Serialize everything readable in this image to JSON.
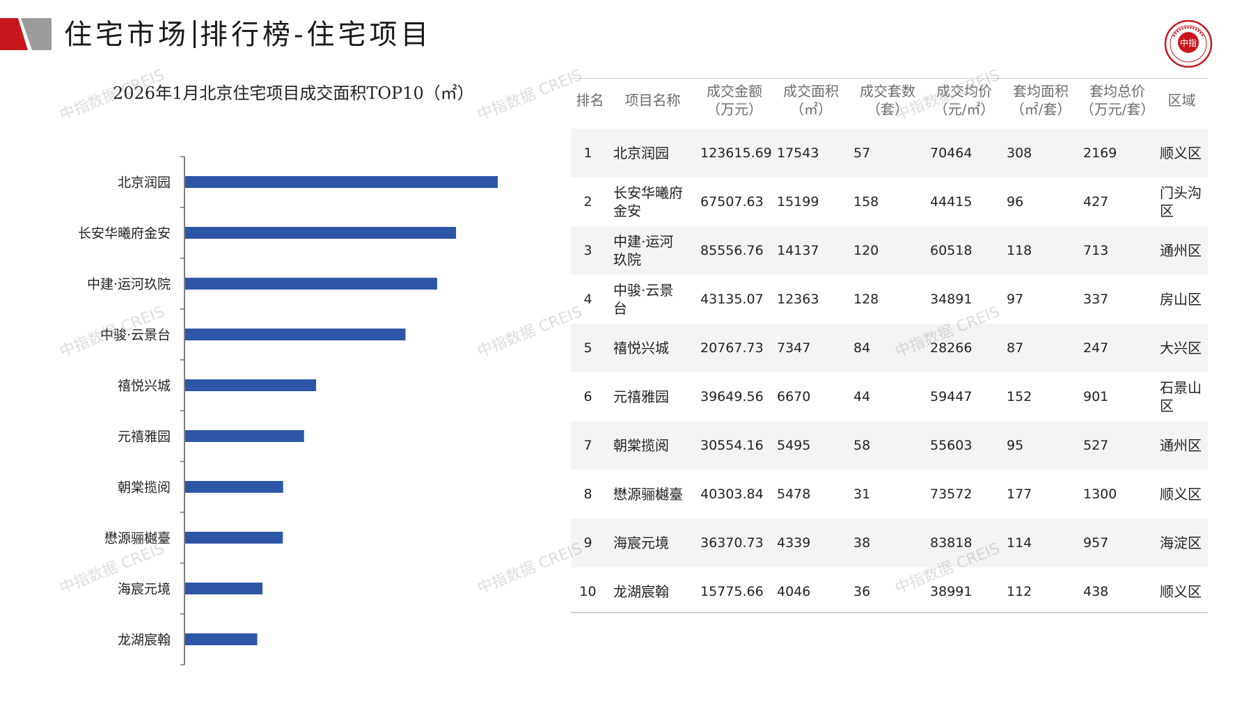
{
  "header": {
    "title_left": "住宅市场",
    "title_right": "排行榜-住宅项目",
    "seal_text": "中指"
  },
  "watermark": "中指数据 CREIS",
  "chart_data": {
    "type": "bar",
    "orientation": "horizontal",
    "title": "2026年1月北京住宅项目成交面积TOP10（㎡）",
    "categories": [
      "北京润园",
      "长安华曦府金安",
      "中建·运河玖院",
      "中骏·云景台",
      "禧悦兴城",
      "元禧雅园",
      "朝棠揽阅",
      "懋源骊樾臺",
      "海宸元境",
      "龙湖宸翰"
    ],
    "values": [
      17543,
      15199,
      14137,
      12363,
      7347,
      6670,
      5495,
      5478,
      4339,
      4046
    ],
    "xlim": [
      0,
      20000
    ],
    "bar_color": "#2e56a6",
    "grid": false
  },
  "table": {
    "headers": [
      [
        "排名"
      ],
      [
        "项目名称"
      ],
      [
        "成交金额",
        "（万元）"
      ],
      [
        "成交面积",
        "（㎡）"
      ],
      [
        "成交套数",
        "（套）"
      ],
      [
        "成交均价",
        "（元/㎡）"
      ],
      [
        "套均面积",
        "（㎡/套）"
      ],
      [
        "套均总价",
        "（万元/套）"
      ],
      [
        "区域"
      ]
    ],
    "rows": [
      {
        "rank": "1",
        "name": [
          "北京润园"
        ],
        "amount": "123615.69",
        "area": "17543",
        "units": "57",
        "price": "70464",
        "avg_area": "308",
        "avg_total": "2169",
        "district": [
          "顺义区"
        ]
      },
      {
        "rank": "2",
        "name": [
          "长安华曦府",
          "金安"
        ],
        "amount": "67507.63",
        "area": "15199",
        "units": "158",
        "price": "44415",
        "avg_area": "96",
        "avg_total": "427",
        "district": [
          "门头沟",
          "区"
        ]
      },
      {
        "rank": "3",
        "name": [
          "中建·运河",
          "玖院"
        ],
        "amount": "85556.76",
        "area": "14137",
        "units": "120",
        "price": "60518",
        "avg_area": "118",
        "avg_total": "713",
        "district": [
          "通州区"
        ]
      },
      {
        "rank": "4",
        "name": [
          "中骏·云景",
          "台"
        ],
        "amount": "43135.07",
        "area": "12363",
        "units": "128",
        "price": "34891",
        "avg_area": "97",
        "avg_total": "337",
        "district": [
          "房山区"
        ]
      },
      {
        "rank": "5",
        "name": [
          "禧悦兴城"
        ],
        "amount": "20767.73",
        "area": "7347",
        "units": "84",
        "price": "28266",
        "avg_area": "87",
        "avg_total": "247",
        "district": [
          "大兴区"
        ]
      },
      {
        "rank": "6",
        "name": [
          "元禧雅园"
        ],
        "amount": "39649.56",
        "area": "6670",
        "units": "44",
        "price": "59447",
        "avg_area": "152",
        "avg_total": "901",
        "district": [
          "石景山",
          "区"
        ]
      },
      {
        "rank": "7",
        "name": [
          "朝棠揽阅"
        ],
        "amount": "30554.16",
        "area": "5495",
        "units": "58",
        "price": "55603",
        "avg_area": "95",
        "avg_total": "527",
        "district": [
          "通州区"
        ]
      },
      {
        "rank": "8",
        "name": [
          "懋源骊樾臺"
        ],
        "amount": "40303.84",
        "area": "5478",
        "units": "31",
        "price": "73572",
        "avg_area": "177",
        "avg_total": "1300",
        "district": [
          "顺义区"
        ]
      },
      {
        "rank": "9",
        "name": [
          "海宸元境"
        ],
        "amount": "36370.73",
        "area": "4339",
        "units": "38",
        "price": "83818",
        "avg_area": "114",
        "avg_total": "957",
        "district": [
          "海淀区"
        ]
      },
      {
        "rank": "10",
        "name": [
          "龙湖宸翰"
        ],
        "amount": "15775.66",
        "area": "4046",
        "units": "36",
        "price": "38991",
        "avg_area": "112",
        "avg_total": "438",
        "district": [
          "顺义区"
        ]
      }
    ]
  }
}
